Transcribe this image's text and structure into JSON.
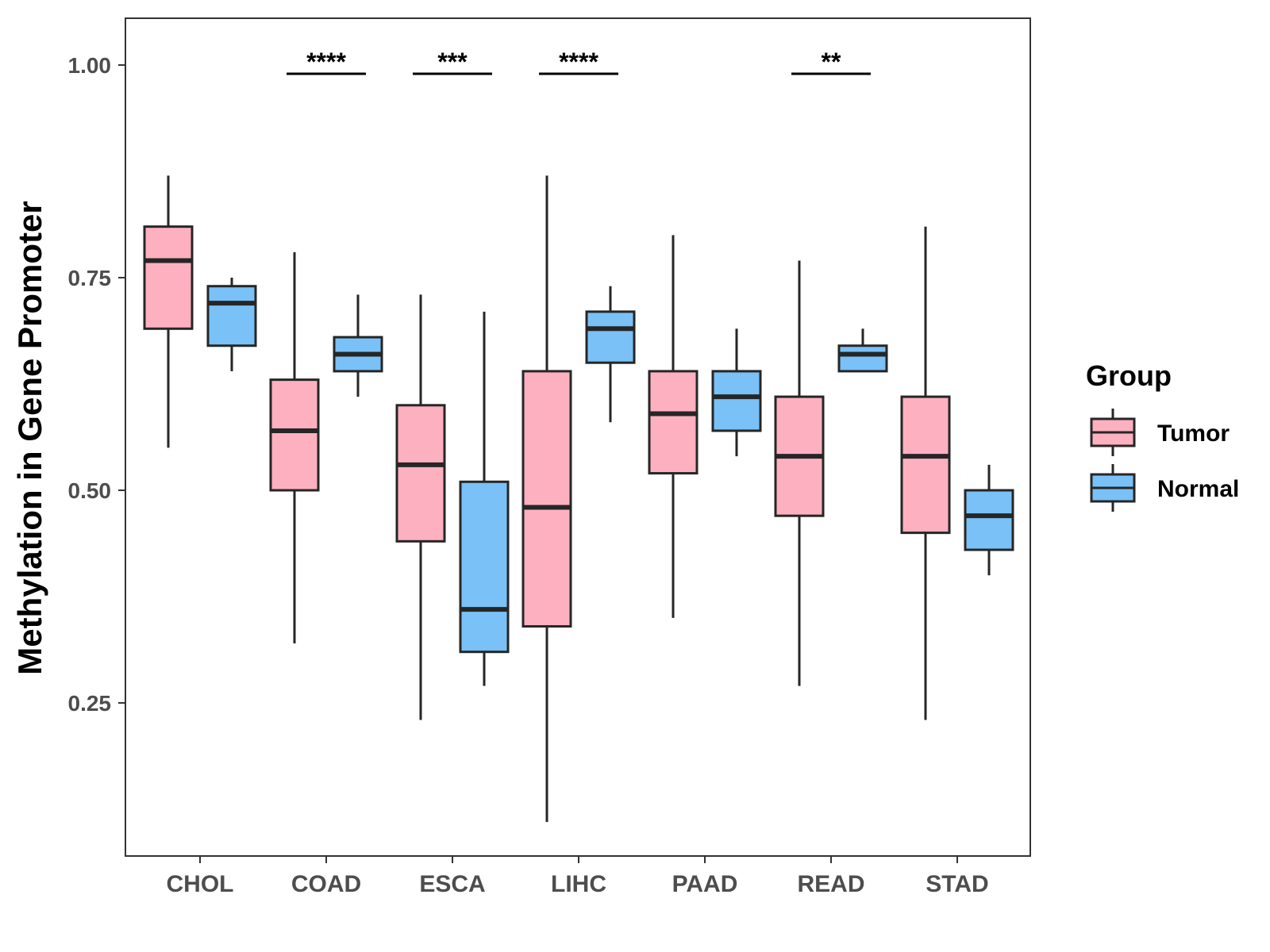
{
  "chart_data": {
    "type": "boxplot",
    "title": "",
    "xlabel": "",
    "ylabel": "Methylation in Gene Promoter",
    "ylim": [
      0.07,
      1.055
    ],
    "yticks": [
      {
        "value": 0.25,
        "label": "0.25"
      },
      {
        "value": 0.5,
        "label": "0.50"
      },
      {
        "value": 0.75,
        "label": "0.75"
      },
      {
        "value": 1.0,
        "label": "1.00"
      }
    ],
    "categories": [
      "CHOL",
      "COAD",
      "ESCA",
      "LIHC",
      "PAAD",
      "READ",
      "STAD"
    ],
    "legend": {
      "title": "Group",
      "position": "right",
      "entries": [
        {
          "name": "Tumor",
          "color": "#FDB0C0"
        },
        {
          "name": "Normal",
          "color": "#79C1F7"
        }
      ]
    },
    "series": [
      {
        "name": "Tumor",
        "color": "#FDB0C0",
        "boxes": [
          {
            "category": "CHOL",
            "min": 0.55,
            "q1": 0.69,
            "median": 0.77,
            "q3": 0.81,
            "max": 0.87
          },
          {
            "category": "COAD",
            "min": 0.32,
            "q1": 0.5,
            "median": 0.57,
            "q3": 0.63,
            "max": 0.78
          },
          {
            "category": "ESCA",
            "min": 0.23,
            "q1": 0.44,
            "median": 0.53,
            "q3": 0.6,
            "max": 0.73
          },
          {
            "category": "LIHC",
            "min": 0.11,
            "q1": 0.34,
            "median": 0.48,
            "q3": 0.64,
            "max": 0.87
          },
          {
            "category": "PAAD",
            "min": 0.35,
            "q1": 0.52,
            "median": 0.59,
            "q3": 0.64,
            "max": 0.8
          },
          {
            "category": "READ",
            "min": 0.27,
            "q1": 0.47,
            "median": 0.54,
            "q3": 0.61,
            "max": 0.77
          },
          {
            "category": "STAD",
            "min": 0.23,
            "q1": 0.45,
            "median": 0.54,
            "q3": 0.61,
            "max": 0.81
          }
        ]
      },
      {
        "name": "Normal",
        "color": "#79C1F7",
        "boxes": [
          {
            "category": "CHOL",
            "min": 0.64,
            "q1": 0.67,
            "median": 0.72,
            "q3": 0.74,
            "max": 0.75
          },
          {
            "category": "COAD",
            "min": 0.61,
            "q1": 0.64,
            "median": 0.66,
            "q3": 0.68,
            "max": 0.73
          },
          {
            "category": "ESCA",
            "min": 0.27,
            "q1": 0.31,
            "median": 0.36,
            "q3": 0.51,
            "max": 0.71
          },
          {
            "category": "LIHC",
            "min": 0.58,
            "q1": 0.65,
            "median": 0.69,
            "q3": 0.71,
            "max": 0.74
          },
          {
            "category": "PAAD",
            "min": 0.54,
            "q1": 0.57,
            "median": 0.61,
            "q3": 0.64,
            "max": 0.69
          },
          {
            "category": "READ",
            "min": 0.64,
            "q1": 0.64,
            "median": 0.66,
            "q3": 0.67,
            "max": 0.69
          },
          {
            "category": "STAD",
            "min": 0.4,
            "q1": 0.43,
            "median": 0.47,
            "q3": 0.5,
            "max": 0.53
          }
        ]
      }
    ],
    "significance": [
      {
        "category": "COAD",
        "label": "****"
      },
      {
        "category": "ESCA",
        "label": "***"
      },
      {
        "category": "LIHC",
        "label": "****"
      },
      {
        "category": "READ",
        "label": "**"
      }
    ]
  }
}
